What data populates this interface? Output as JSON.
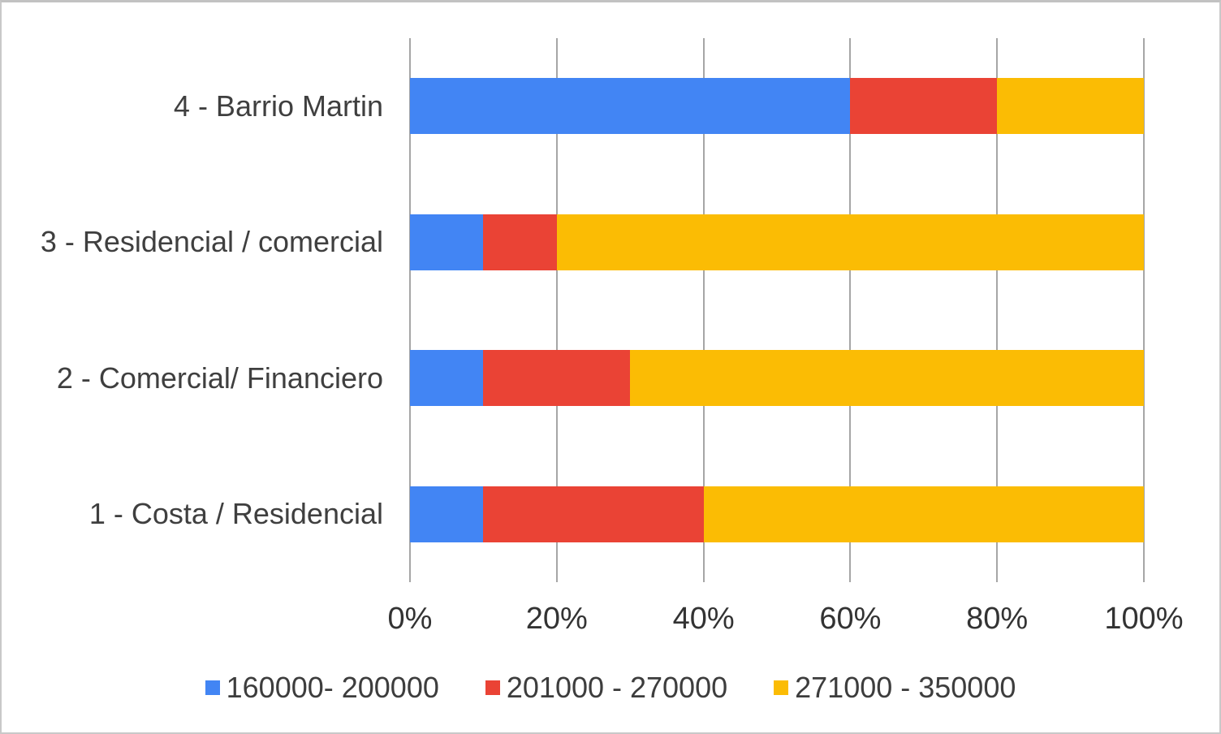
{
  "chart_data": {
    "type": "bar",
    "orientation": "horizontal",
    "stacked": true,
    "stacked_mode": "percent",
    "title": "",
    "xlabel": "",
    "ylabel": "",
    "categories": [
      "4 - Barrio Martin",
      "3 - Residencial / comercial",
      "2 - Comercial/ Financiero",
      "1 - Costa / Residencial"
    ],
    "series": [
      {
        "name": "160000- 200000",
        "color": "#4285F4",
        "values": [
          60,
          10,
          10,
          10
        ]
      },
      {
        "name": "201000 - 270000",
        "color": "#EA4335",
        "values": [
          20,
          10,
          20,
          30
        ]
      },
      {
        "name": "271000 - 350000",
        "color": "#FBBC04",
        "values": [
          20,
          80,
          70,
          60
        ]
      }
    ],
    "x_ticks": [
      "0%",
      "20%",
      "40%",
      "60%",
      "80%",
      "100%"
    ],
    "xlim": [
      0,
      100
    ],
    "grid": true,
    "legend_position": "bottom"
  },
  "colors": {
    "gridline": "#a6a6a6",
    "axis_text": "#333333",
    "category_text": "#3f3f3f",
    "legend_text": "#3d3d3d",
    "background": "#ffffff",
    "frame_border": "#c9c9c9"
  }
}
